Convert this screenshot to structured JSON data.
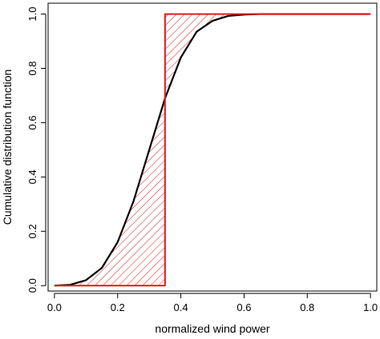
{
  "chart_data": {
    "type": "line",
    "title": "",
    "xlabel": "normalized wind power",
    "ylabel": "Cumulative distribution function",
    "xlim": [
      -0.02,
      1.02
    ],
    "ylim": [
      -0.02,
      1.04
    ],
    "x_ticks": [
      "0.0",
      "0.2",
      "0.4",
      "0.6",
      "0.8",
      "1.0"
    ],
    "y_ticks": [
      "0.0",
      "0.2",
      "0.4",
      "0.6",
      "0.8",
      "1.0"
    ],
    "grid": false,
    "legend": "none",
    "series": [
      {
        "color": "#000000",
        "x": [
          0.0,
          0.05,
          0.1,
          0.15,
          0.2,
          0.25,
          0.3,
          0.35,
          0.4,
          0.45,
          0.5,
          0.55,
          0.6,
          0.65,
          0.7,
          0.8,
          0.9,
          1.0
        ],
        "y": [
          0.0,
          0.003,
          0.02,
          0.065,
          0.16,
          0.31,
          0.5,
          0.69,
          0.84,
          0.935,
          0.975,
          0.993,
          0.998,
          1.0,
          1.0,
          1.0,
          1.0,
          1.0
        ]
      },
      {
        "color": "#e31a1c",
        "x": [
          0.0,
          0.35,
          0.35,
          1.0
        ],
        "y": [
          0.0,
          0.0,
          1.0,
          1.0
        ]
      }
    ],
    "hatched_area": {
      "color": "#e31a1c",
      "between": "series 0 and series 1"
    }
  }
}
